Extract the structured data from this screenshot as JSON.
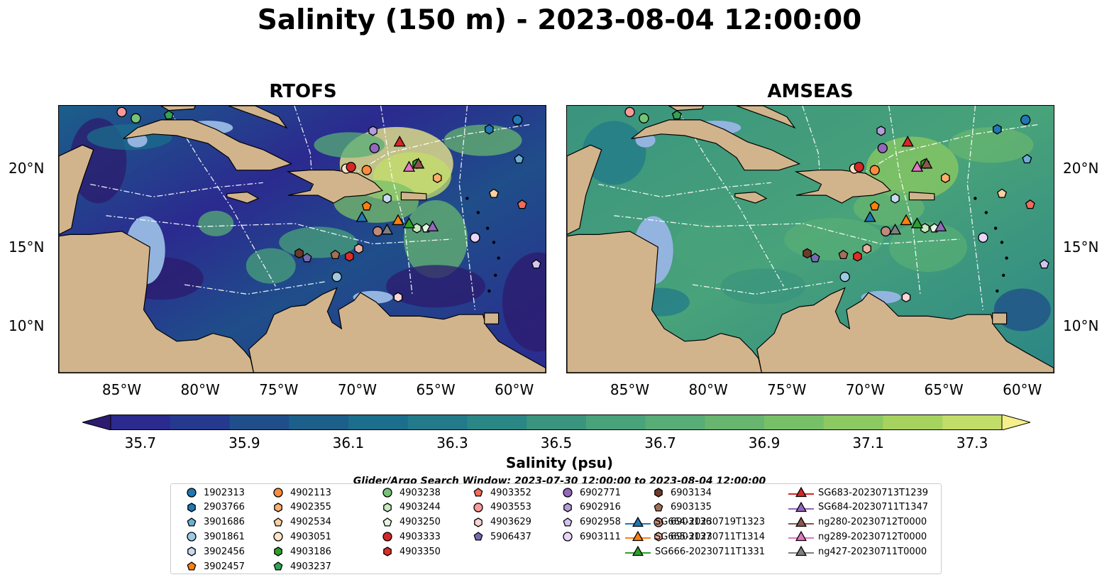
{
  "title": "Salinity (150 m) - 2023-08-04 12:00:00",
  "panels": [
    {
      "title": "RTOFS",
      "theme": "rtofs"
    },
    {
      "title": "AMSEAS",
      "theme": "amseas"
    }
  ],
  "map": {
    "lon_range": [
      -89,
      -58
    ],
    "lat_range": [
      7,
      24
    ],
    "lon_ticks": [
      "85°W",
      "80°W",
      "75°W",
      "70°W",
      "65°W",
      "60°W"
    ],
    "lon_tick_values": [
      -85,
      -80,
      -75,
      -70,
      -65,
      -60
    ],
    "lat_ticks": [
      "10°N",
      "15°N",
      "20°N"
    ],
    "lat_tick_values": [
      10,
      15,
      20
    ],
    "colors": {
      "land": "#d2b48c",
      "shelf": "#94b4e0",
      "coast": "#000000"
    }
  },
  "colorbar": {
    "label": "Salinity (psu)",
    "ticks": [
      "35.7",
      "35.9",
      "36.1",
      "36.3",
      "36.5",
      "36.7",
      "36.9",
      "37.1",
      "37.3"
    ],
    "min": 35.7,
    "max": 37.3,
    "colors": [
      "#2c1b6e",
      "#2b2a8f",
      "#25398f",
      "#1f4e8a",
      "#1b5f8a",
      "#1b6e8c",
      "#227a8a",
      "#2b8686",
      "#3a947e",
      "#48a27a",
      "#57ad75",
      "#67b56f",
      "#78c068",
      "#8cc962",
      "#a6d35f",
      "#c2dd6a",
      "#f5f08a"
    ]
  },
  "search_window": "Glider/Argo Search Window: 2023-07-30 12:00:00 to 2023-08-04 12:00:00",
  "legend": {
    "items": [
      {
        "label": "1902313",
        "marker": "circle",
        "color": "#1f77b4"
      },
      {
        "label": "2903766",
        "marker": "hexagon",
        "color": "#1f77b4"
      },
      {
        "label": "3901686",
        "marker": "pentagon",
        "color": "#6baed6"
      },
      {
        "label": "3901861",
        "marker": "circle",
        "color": "#9ecae1"
      },
      {
        "label": "3902456",
        "marker": "hexagon",
        "color": "#c6dbef"
      },
      {
        "label": "3902457",
        "marker": "pentagon",
        "color": "#ff7f0e"
      },
      {
        "label": "4902113",
        "marker": "circle",
        "color": "#fd8d3c"
      },
      {
        "label": "4902355",
        "marker": "hexagon",
        "color": "#fdae6b"
      },
      {
        "label": "4902534",
        "marker": "pentagon",
        "color": "#fdd0a2"
      },
      {
        "label": "4903051",
        "marker": "circle",
        "color": "#ffe4c4"
      },
      {
        "label": "4903186",
        "marker": "hexagon",
        "color": "#2ca02c"
      },
      {
        "label": "4903237",
        "marker": "pentagon",
        "color": "#31a354"
      },
      {
        "label": "4903238",
        "marker": "circle",
        "color": "#74c476"
      },
      {
        "label": "4903244",
        "marker": "hexagon",
        "color": "#c7e9c0"
      },
      {
        "label": "4903250",
        "marker": "pentagon",
        "color": "#e5f5e0"
      },
      {
        "label": "4903333",
        "marker": "circle",
        "color": "#d62728"
      },
      {
        "label": "4903350",
        "marker": "hexagon",
        "color": "#de2d26"
      },
      {
        "label": "4903352",
        "marker": "pentagon",
        "color": "#f26b5b"
      },
      {
        "label": "4903553",
        "marker": "circle",
        "color": "#fc9a9a"
      },
      {
        "label": "4903629",
        "marker": "hexagon",
        "color": "#fcd5d5"
      },
      {
        "label": "5906437",
        "marker": "pentagon",
        "color": "#756bb1"
      },
      {
        "label": "6902771",
        "marker": "circle",
        "color": "#9467bd"
      },
      {
        "label": "6902916",
        "marker": "hexagon",
        "color": "#b39ddb"
      },
      {
        "label": "6902958",
        "marker": "pentagon",
        "color": "#d4c4f0"
      },
      {
        "label": "6903111",
        "marker": "circle",
        "color": "#e9d5f5"
      },
      {
        "label": "6903134",
        "marker": "hexagon",
        "color": "#6d3b2a"
      },
      {
        "label": "6903135",
        "marker": "pentagon",
        "color": "#a0705a"
      },
      {
        "label": "6903136",
        "marker": "circle",
        "color": "#c08a7a"
      },
      {
        "label": "6903137",
        "marker": "hexagon",
        "color": "#e8b0a0"
      },
      {
        "label": "SG664-20230719T1323",
        "marker": "triangle-line",
        "color": "#1f77b4"
      },
      {
        "label": "SG665-20230711T1314",
        "marker": "triangle-line",
        "color": "#ff7f0e"
      },
      {
        "label": "SG666-20230711T1331",
        "marker": "triangle-line",
        "color": "#2ca02c"
      },
      {
        "label": "SG683-20230713T1239",
        "marker": "triangle-line",
        "color": "#d62728"
      },
      {
        "label": "SG684-20230711T1347",
        "marker": "triangle-line",
        "color": "#9467bd"
      },
      {
        "label": "ng280-20230712T0000",
        "marker": "triangle-line",
        "color": "#8c564b"
      },
      {
        "label": "ng289-20230712T0000",
        "marker": "triangle-line",
        "color": "#e377c2"
      },
      {
        "label": "ng427-20230711T0000",
        "marker": "triangle-line",
        "color": "#7f7f7f"
      }
    ]
  },
  "observations": [
    {
      "id": "1902313",
      "lon": -59.8,
      "lat": 23.1
    },
    {
      "id": "2903766",
      "lon": -61.6,
      "lat": 22.5
    },
    {
      "id": "3901686",
      "lon": -59.7,
      "lat": 20.6
    },
    {
      "id": "3901861",
      "lon": -71.3,
      "lat": 13.1
    },
    {
      "id": "3902456",
      "lon": -68.1,
      "lat": 18.1
    },
    {
      "id": "3902457",
      "lon": -69.4,
      "lat": 17.6
    },
    {
      "id": "4902113",
      "lon": -69.4,
      "lat": 19.9
    },
    {
      "id": "4902355",
      "lon": -64.9,
      "lat": 19.4
    },
    {
      "id": "4902534",
      "lon": -61.3,
      "lat": 18.4
    },
    {
      "id": "4903051",
      "lon": -70.7,
      "lat": 20.0
    },
    {
      "id": "4903186",
      "lon": -66.2,
      "lat": 20.3
    },
    {
      "id": "4903237",
      "lon": -82.0,
      "lat": 23.4
    },
    {
      "id": "4903238",
      "lon": -84.1,
      "lat": 23.2
    },
    {
      "id": "4903244",
      "lon": -66.2,
      "lat": 16.2
    },
    {
      "id": "4903250",
      "lon": -65.6,
      "lat": 16.2
    },
    {
      "id": "4903333",
      "lon": -70.4,
      "lat": 20.1
    },
    {
      "id": "4903350",
      "lon": -70.5,
      "lat": 14.4
    },
    {
      "id": "4903352",
      "lon": -59.5,
      "lat": 17.7
    },
    {
      "id": "4903553",
      "lon": -85.0,
      "lat": 23.6
    },
    {
      "id": "4903629",
      "lon": -67.4,
      "lat": 11.8
    },
    {
      "id": "5906437",
      "lon": -73.2,
      "lat": 14.3
    },
    {
      "id": "6902771",
      "lon": -68.9,
      "lat": 21.3
    },
    {
      "id": "6902916",
      "lon": -69.0,
      "lat": 22.4
    },
    {
      "id": "6902958",
      "lon": -58.6,
      "lat": 13.9
    },
    {
      "id": "6903111",
      "lon": -62.5,
      "lat": 15.6
    },
    {
      "id": "6903134",
      "lon": -73.7,
      "lat": 14.6
    },
    {
      "id": "6903135",
      "lon": -71.4,
      "lat": 14.5
    },
    {
      "id": "6903136",
      "lon": -68.7,
      "lat": 16.0
    },
    {
      "id": "6903137",
      "lon": -69.9,
      "lat": 14.9
    },
    {
      "id": "SG664-20230719T1323",
      "lon": -69.7,
      "lat": 16.9
    },
    {
      "id": "SG665-20230711T1314",
      "lon": -67.4,
      "lat": 16.7
    },
    {
      "id": "SG666-20230711T1331",
      "lon": -66.7,
      "lat": 16.5
    },
    {
      "id": "SG683-20230713T1239",
      "lon": -67.3,
      "lat": 21.7
    },
    {
      "id": "SG684-20230711T1347",
      "lon": -65.2,
      "lat": 16.3
    },
    {
      "id": "ng280-20230712T0000",
      "lon": -66.1,
      "lat": 20.3
    },
    {
      "id": "ng289-20230712T0000",
      "lon": -66.7,
      "lat": 20.1
    },
    {
      "id": "ng427-20230711T0000",
      "lon": -68.1,
      "lat": 16.1
    }
  ]
}
